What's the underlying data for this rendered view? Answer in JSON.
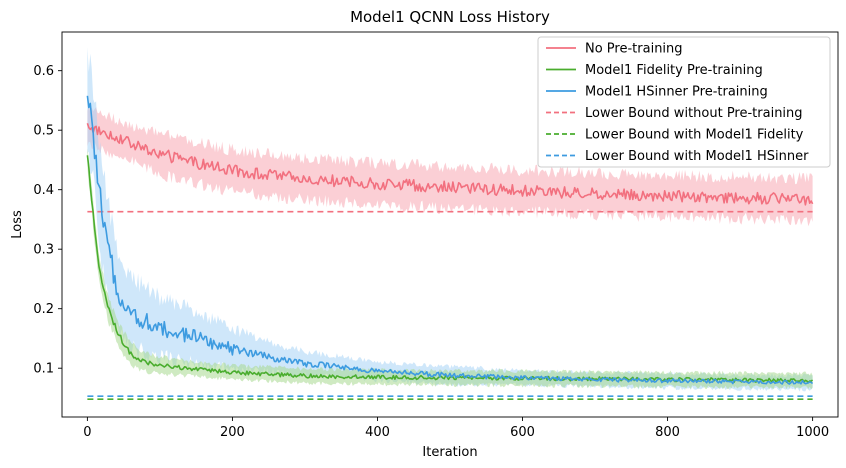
{
  "chart_data": {
    "type": "line",
    "title": "Model1 QCNN Loss History",
    "xlabel": "Iteration",
    "ylabel": "Loss",
    "xlim": [
      -35,
      1035
    ],
    "ylim": [
      0.018,
      0.665
    ],
    "xticks": [
      0,
      200,
      400,
      600,
      800,
      1000
    ],
    "yticks": [
      0.1,
      0.2,
      0.3,
      0.4,
      0.5,
      0.6
    ],
    "grid": false,
    "legend_position": "top-right",
    "series": [
      {
        "name": "No Pre-training",
        "style": "solid",
        "color": "#f2707f",
        "band_color": "#f7a8b3",
        "x": [
          0,
          10,
          20,
          40,
          60,
          80,
          100,
          150,
          200,
          250,
          300,
          400,
          500,
          600,
          700,
          800,
          900,
          1000
        ],
        "values": [
          0.508,
          0.502,
          0.497,
          0.488,
          0.478,
          0.468,
          0.46,
          0.445,
          0.432,
          0.425,
          0.418,
          0.41,
          0.404,
          0.398,
          0.393,
          0.39,
          0.386,
          0.384
        ],
        "spread": [
          0.03,
          0.03,
          0.03,
          0.03,
          0.03,
          0.03,
          0.035,
          0.035,
          0.035,
          0.035,
          0.035,
          0.035,
          0.035,
          0.035,
          0.035,
          0.035,
          0.035,
          0.035
        ]
      },
      {
        "name": "Model1 Fidelity Pre-training",
        "style": "solid",
        "color": "#4aad2e",
        "band_color": "#a8d98f",
        "x": [
          0,
          5,
          10,
          15,
          20,
          25,
          30,
          40,
          50,
          60,
          70,
          80,
          100,
          150,
          200,
          250,
          300,
          400,
          500,
          600,
          700,
          800,
          900,
          1000
        ],
        "values": [
          0.455,
          0.4,
          0.33,
          0.28,
          0.245,
          0.22,
          0.195,
          0.165,
          0.14,
          0.125,
          0.115,
          0.11,
          0.105,
          0.098,
          0.093,
          0.09,
          0.087,
          0.085,
          0.084,
          0.083,
          0.082,
          0.081,
          0.08,
          0.079
        ],
        "spread": [
          0.02,
          0.02,
          0.02,
          0.02,
          0.02,
          0.02,
          0.02,
          0.02,
          0.02,
          0.018,
          0.016,
          0.015,
          0.014,
          0.012,
          0.012,
          0.012,
          0.012,
          0.012,
          0.012,
          0.012,
          0.012,
          0.012,
          0.012,
          0.012
        ]
      },
      {
        "name": "Model1 HSinner Pre-training",
        "style": "solid",
        "color": "#3d9be0",
        "band_color": "#a8d4f5",
        "x": [
          0,
          5,
          10,
          15,
          20,
          30,
          40,
          50,
          60,
          80,
          100,
          150,
          200,
          250,
          300,
          400,
          500,
          600,
          700,
          800,
          900,
          1000
        ],
        "values": [
          0.545,
          0.525,
          0.47,
          0.41,
          0.36,
          0.29,
          0.24,
          0.21,
          0.195,
          0.178,
          0.168,
          0.152,
          0.132,
          0.118,
          0.108,
          0.095,
          0.088,
          0.084,
          0.081,
          0.079,
          0.077,
          0.076
        ],
        "spread": [
          0.08,
          0.08,
          0.08,
          0.08,
          0.08,
          0.075,
          0.07,
          0.065,
          0.06,
          0.055,
          0.05,
          0.045,
          0.035,
          0.025,
          0.02,
          0.015,
          0.015,
          0.012,
          0.012,
          0.012,
          0.012,
          0.012
        ]
      },
      {
        "name": "Lower Bound without Pre-training",
        "style": "dashed",
        "color": "#f2707f",
        "x": [
          0,
          1000
        ],
        "values": [
          0.363,
          0.363
        ]
      },
      {
        "name": "Lower Bound with Model1 Fidelity",
        "style": "dashed",
        "color": "#4aad2e",
        "x": [
          0,
          1000
        ],
        "values": [
          0.048,
          0.048
        ]
      },
      {
        "name": "Lower Bound with Model1 HSinner",
        "style": "dashed",
        "color": "#3d9be0",
        "x": [
          0,
          1000
        ],
        "values": [
          0.053,
          0.053
        ]
      }
    ]
  }
}
